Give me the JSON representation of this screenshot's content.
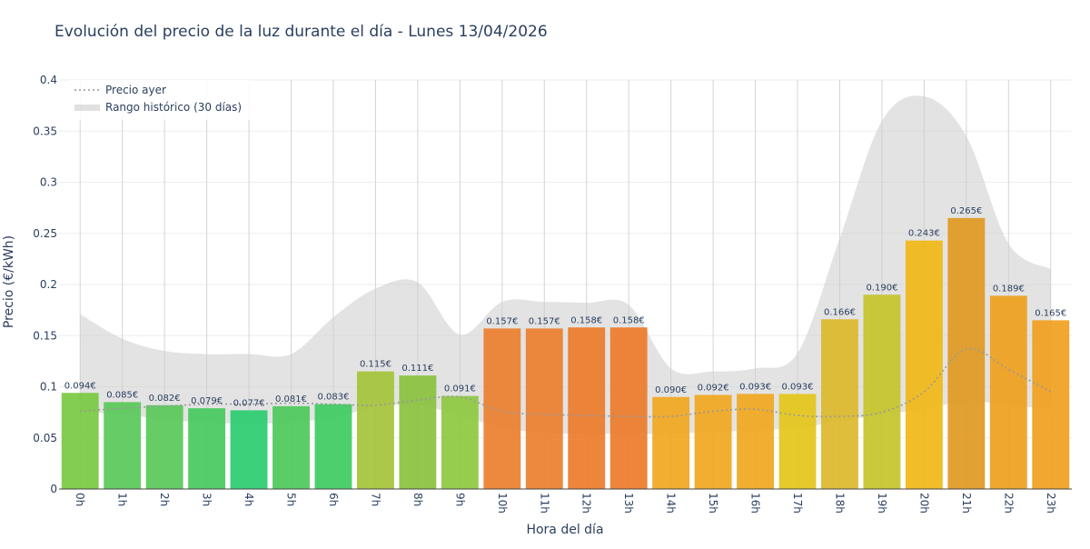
{
  "chart_data": {
    "type": "bar",
    "title": "Evolución del precio de la luz durante el día - Lunes 13/04/2026",
    "xlabel": "Hora del día",
    "ylabel": "Precio (€/kWh)",
    "ylim": [
      0,
      0.4
    ],
    "yticks": [
      0,
      0.05,
      0.1,
      0.15,
      0.2,
      0.25,
      0.3,
      0.35,
      0.4
    ],
    "ytick_labels": [
      "0",
      "0.05",
      "0.1",
      "0.15",
      "0.2",
      "0.25",
      "0.3",
      "0.35",
      "0.4"
    ],
    "grid": true,
    "legend_position": "top-left",
    "categories": [
      "0h",
      "1h",
      "2h",
      "3h",
      "4h",
      "5h",
      "6h",
      "7h",
      "8h",
      "9h",
      "10h",
      "11h",
      "12h",
      "13h",
      "14h",
      "15h",
      "16h",
      "17h",
      "18h",
      "19h",
      "20h",
      "21h",
      "22h",
      "23h"
    ],
    "values": [
      0.094,
      0.085,
      0.082,
      0.079,
      0.077,
      0.081,
      0.083,
      0.115,
      0.111,
      0.091,
      0.157,
      0.157,
      0.158,
      0.158,
      0.09,
      0.092,
      0.093,
      0.093,
      0.166,
      0.19,
      0.243,
      0.265,
      0.189,
      0.165
    ],
    "value_labels": [
      "0.094€",
      "0.085€",
      "0.082€",
      "0.079€",
      "0.077€",
      "0.081€",
      "0.083€",
      "0.115€",
      "0.111€",
      "0.091€",
      "0.157€",
      "0.157€",
      "0.158€",
      "0.158€",
      "0.090€",
      "0.092€",
      "0.093€",
      "0.093€",
      "0.166€",
      "0.190€",
      "0.243€",
      "0.265€",
      "0.189€",
      "0.165€"
    ],
    "bar_colors": [
      "#7ac943",
      "#5ac95a",
      "#5ac95a",
      "#48c960",
      "#2ecc71",
      "#4fc95b",
      "#3fcb62",
      "#a5c43a",
      "#8ac240",
      "#8ec942",
      "#ec8030",
      "#ec8030",
      "#ec7c2c",
      "#ec7c2c",
      "#f0a820",
      "#f0a820",
      "#f0a820",
      "#e4c61c",
      "#dcb92c",
      "#c6c42c",
      "#f0b818",
      "#e09a24",
      "#eea020",
      "#f0a020"
    ],
    "series": [
      {
        "name": "Precio ayer",
        "style": "dotted-line",
        "color": "#999999",
        "values": [
          0.076,
          0.079,
          0.081,
          0.083,
          0.083,
          0.084,
          0.083,
          0.082,
          0.087,
          0.09,
          0.076,
          0.073,
          0.072,
          0.071,
          0.071,
          0.076,
          0.078,
          0.072,
          0.071,
          0.075,
          0.095,
          0.137,
          0.117,
          0.095
        ]
      },
      {
        "name": "Rango histórico (30 días)",
        "style": "band",
        "color": "#cccccc",
        "upper": [
          0.171,
          0.147,
          0.135,
          0.132,
          0.132,
          0.132,
          0.168,
          0.196,
          0.202,
          0.151,
          0.183,
          0.183,
          0.182,
          0.18,
          0.118,
          0.115,
          0.118,
          0.133,
          0.245,
          0.36,
          0.384,
          0.345,
          0.24,
          0.215
        ],
        "lower": [
          0.075,
          0.073,
          0.068,
          0.065,
          0.064,
          0.065,
          0.07,
          0.08,
          0.082,
          0.072,
          0.06,
          0.055,
          0.054,
          0.054,
          0.054,
          0.056,
          0.057,
          0.06,
          0.066,
          0.073,
          0.078,
          0.086,
          0.082,
          0.078
        ]
      }
    ]
  }
}
